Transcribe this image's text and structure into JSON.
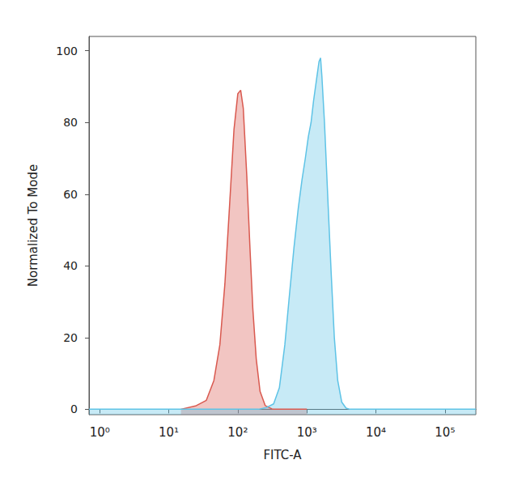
{
  "chart_data": {
    "type": "area",
    "x_label": "FITC-A",
    "y_label": "Normalized To Mode",
    "log": "x",
    "grid": false,
    "xlim": [
      0.7,
      280000
    ],
    "xticks": [
      {
        "value": 1,
        "label": "10⁰"
      },
      {
        "value": 10,
        "label": "10¹"
      },
      {
        "value": 100,
        "label": "10²"
      },
      {
        "value": 1000,
        "label": "10³"
      },
      {
        "value": 10000,
        "label": "10⁴"
      },
      {
        "value": 100000,
        "label": "10⁵"
      }
    ],
    "ylim": [
      -1.5,
      104
    ],
    "yticks": [
      0,
      20,
      40,
      60,
      80,
      100
    ],
    "series": [
      {
        "color": "#d9594f",
        "x": [
          15,
          25,
          35,
          45,
          55,
          65,
          75,
          88,
          100,
          110,
          120,
          135,
          150,
          165,
          185,
          210,
          250,
          320,
          1000
        ],
        "values": [
          0,
          1,
          2.5,
          8,
          18,
          35,
          55,
          78,
          88,
          89,
          84,
          65,
          45,
          28,
          14,
          5,
          1,
          0,
          0
        ]
      },
      {
        "color": "#5ec3e6",
        "x": [
          0.7,
          200,
          260,
          330,
          400,
          480,
          560,
          650,
          750,
          850,
          950,
          1050,
          1150,
          1250,
          1380,
          1500,
          1580,
          1650,
          1800,
          2000,
          2250,
          2500,
          2800,
          3200,
          3700,
          4200,
          280000
        ],
        "values": [
          0,
          0,
          0.5,
          1.5,
          6,
          18,
          32,
          45,
          56,
          64,
          70,
          76,
          80,
          86,
          92,
          97,
          98,
          93,
          80,
          60,
          38,
          20,
          8,
          2,
          0.3,
          0,
          0
        ]
      }
    ]
  }
}
